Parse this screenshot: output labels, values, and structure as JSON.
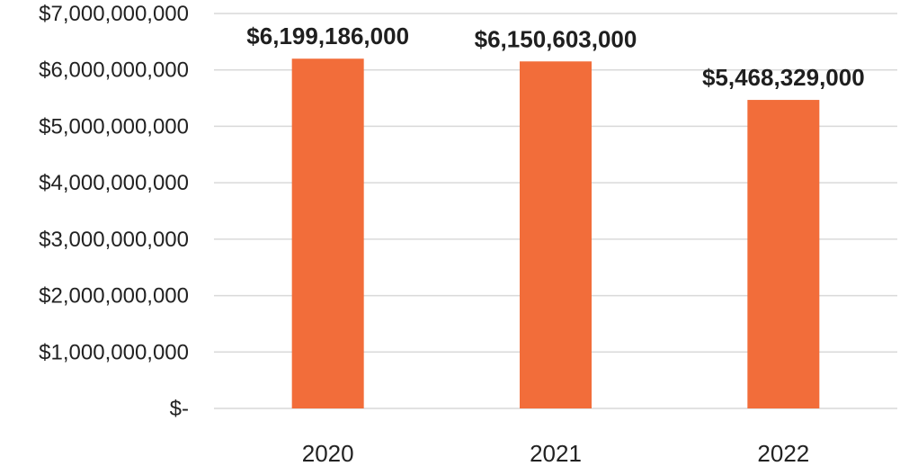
{
  "chart_data": {
    "type": "bar",
    "title": "",
    "xlabel": "",
    "ylabel": "",
    "categories": [
      "2020",
      "2021",
      "2022"
    ],
    "values": [
      6199186000,
      6150603000,
      5468329000
    ],
    "data_labels": [
      "$6,199,186,000",
      "$6,150,603,000",
      "$5,468,329,000"
    ],
    "ylim": [
      0,
      7000000000
    ],
    "y_ticks": [
      0,
      1000000000,
      2000000000,
      3000000000,
      4000000000,
      5000000000,
      6000000000,
      7000000000
    ],
    "y_tick_labels": [
      "$-",
      "$1,000,000,000",
      "$2,000,000,000",
      "$3,000,000,000",
      "$4,000,000,000",
      "$5,000,000,000",
      "$6,000,000,000",
      "$7,000,000,000"
    ],
    "grid": true,
    "legend": "none",
    "bar_color": "#f26d3a",
    "grid_color": "#d9d9d9",
    "text_color": "#222222"
  }
}
